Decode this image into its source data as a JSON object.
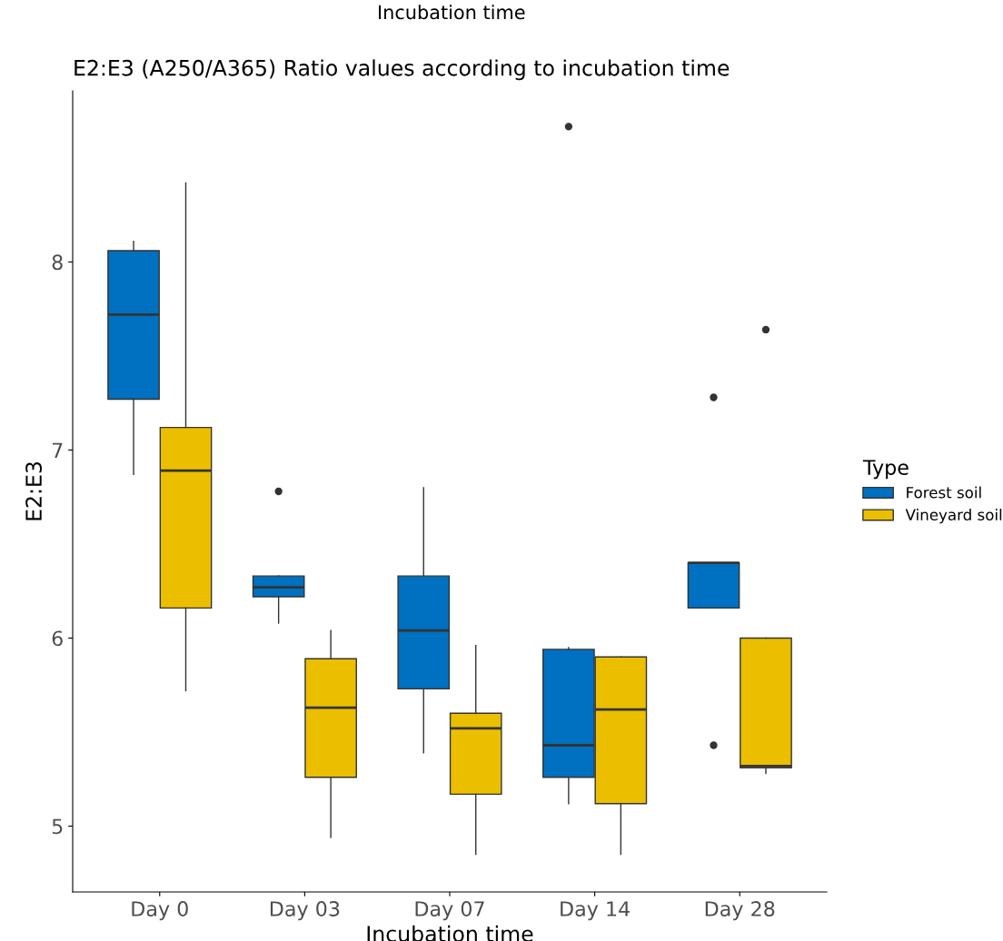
{
  "chart_data": {
    "type": "box",
    "title": "E2:E3 (A250/A365) Ratio values according to incubation time",
    "xlabel": "Incubation time",
    "ylabel": "E2:E3",
    "legend_title": "Type",
    "legend": "right",
    "grid": false,
    "categories": [
      "Day 0",
      "Day 03",
      "Day 07",
      "Day 14",
      "Day 28"
    ],
    "ylim": [
      4.65,
      8.91
    ],
    "yticks": [
      5,
      6,
      7,
      8
    ],
    "annotations": [
      "Incubation time"
    ],
    "series": [
      {
        "name": "Forest soil",
        "color": "#0070c0",
        "boxes": [
          {
            "low": 6.87,
            "q1": 7.27,
            "median": 7.72,
            "q3": 8.06,
            "high": 8.11
          },
          {
            "low": 6.08,
            "q1": 6.22,
            "median": 6.27,
            "q3": 6.33,
            "high": 6.33,
            "outliers": [
              6.78
            ]
          },
          {
            "low": 5.39,
            "q1": 5.73,
            "median": 6.04,
            "q3": 6.33,
            "high": 6.8
          },
          {
            "low": 5.12,
            "q1": 5.26,
            "median": 5.43,
            "q3": 5.94,
            "high": 5.95,
            "outliers": [
              8.72
            ]
          },
          {
            "low": 6.16,
            "q1": 6.16,
            "median": 6.4,
            "q3": 6.4,
            "high": 6.4,
            "outliers": [
              7.28,
              5.43
            ]
          }
        ]
      },
      {
        "name": "Vineyard soil",
        "color": "#ebbf00",
        "boxes": [
          {
            "low": 5.72,
            "q1": 6.16,
            "median": 6.89,
            "q3": 7.12,
            "high": 8.42
          },
          {
            "low": 4.94,
            "q1": 5.26,
            "median": 5.63,
            "q3": 5.89,
            "high": 6.04
          },
          {
            "low": 4.85,
            "q1": 5.17,
            "median": 5.52,
            "q3": 5.6,
            "high": 5.96
          },
          {
            "low": 4.85,
            "q1": 5.12,
            "median": 5.62,
            "q3": 5.9,
            "high": 5.9
          },
          {
            "low": 5.28,
            "q1": 5.31,
            "median": 5.32,
            "q3": 6.0,
            "high": 6.0,
            "outliers": [
              7.64
            ]
          }
        ]
      }
    ]
  }
}
